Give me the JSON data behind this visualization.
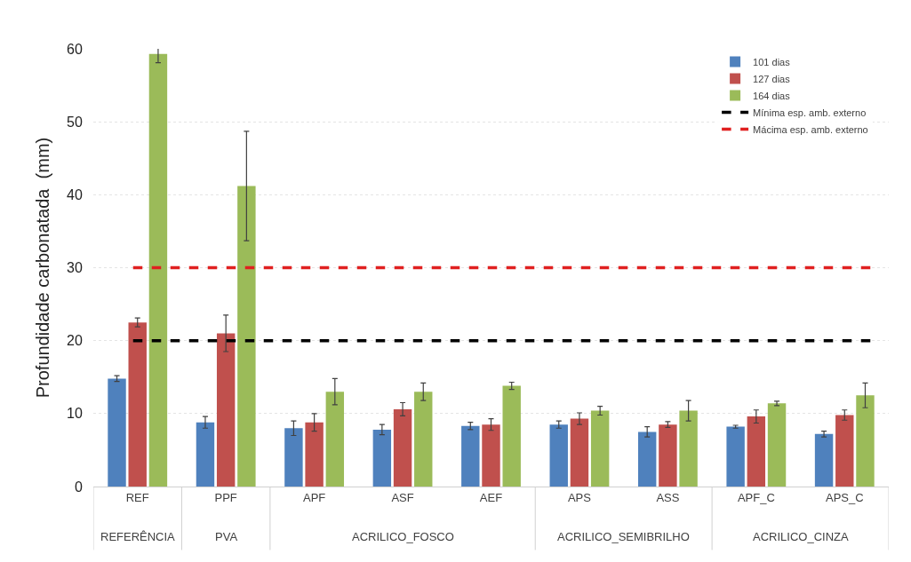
{
  "chart_data": {
    "type": "bar",
    "ylabel": "Profundidade carbonatada  (mm)",
    "categories": [
      "REF",
      "PPF",
      "APF",
      "ASF",
      "AEF",
      "APS",
      "ASS",
      "APF_C",
      "APS_C"
    ],
    "series": [
      {
        "name": "101 dias",
        "color": "#4f81bd",
        "values": [
          14.8,
          8.8,
          8.0,
          7.8,
          8.3,
          8.5,
          7.5,
          8.2,
          7.2
        ],
        "errors": [
          0.4,
          0.8,
          1.0,
          0.7,
          0.5,
          0.5,
          0.7,
          0.2,
          0.4
        ]
      },
      {
        "name": "127 dias",
        "color": "#c0504d",
        "values": [
          22.5,
          21.0,
          8.8,
          10.6,
          8.5,
          9.3,
          8.5,
          9.6,
          9.8
        ],
        "errors": [
          0.6,
          2.5,
          1.2,
          0.9,
          0.8,
          0.8,
          0.4,
          0.9,
          0.7
        ]
      },
      {
        "name": "164 dias",
        "color": "#9bbb59",
        "values": [
          59.3,
          41.2,
          13.0,
          13.0,
          13.8,
          10.4,
          10.4,
          11.4,
          12.5
        ],
        "errors": [
          1.2,
          7.5,
          1.8,
          1.2,
          0.5,
          0.6,
          1.4,
          0.3,
          1.7
        ]
      }
    ],
    "ref_lines": [
      {
        "axis": "y",
        "value": 20,
        "label": "Mínima esp. amb. externo",
        "color": "#000000",
        "line_style": "dashed"
      },
      {
        "axis": "y",
        "value": 30,
        "label": "Mácima esp. amb. externo",
        "color": "#e02020",
        "line_style": "dashed"
      }
    ],
    "annotations": [
      "REFERÊNCIA",
      "PVA",
      "ACRILICO_FOSCO",
      "ACRILICO_SEMIBRILHO",
      "ACRILICO_CINZA"
    ],
    "ylim": [
      0,
      60
    ],
    "yticks": [
      0,
      10,
      20,
      30,
      40,
      50,
      60
    ],
    "grid": "y",
    "legend": "top right"
  }
}
